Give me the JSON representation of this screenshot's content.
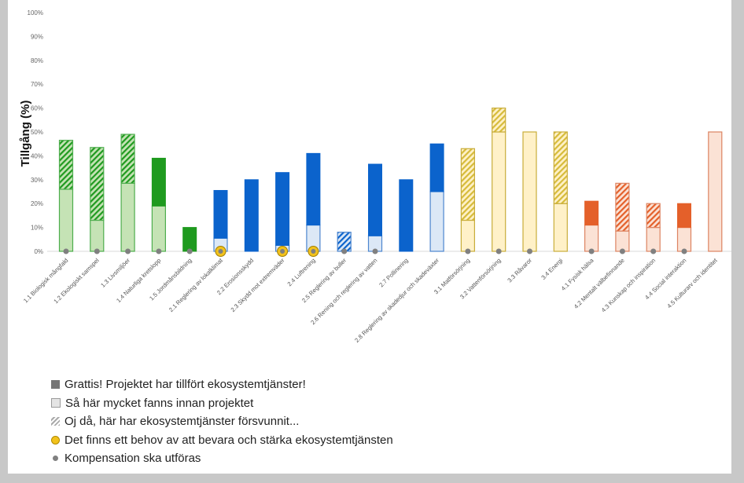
{
  "chart_data": {
    "type": "bar",
    "stacked": true,
    "ylabel": "Tillgång (%)",
    "xlabel": "",
    "ylim": [
      0,
      100
    ],
    "yticks": [
      "0%",
      "10%",
      "20%",
      "30%",
      "40%",
      "50%",
      "60%",
      "70%",
      "80%",
      "90%",
      "100%"
    ],
    "grid": false,
    "legend_position": "bottom-left",
    "categories": [
      "1.1 Biologisk mångfald",
      "1.2 Ekologiskt samspel",
      "1.3 Livsmiljöer",
      "1.4 Naturliga kretslopp",
      "1.5 Jordmånsbildning",
      "2.1 Reglering av lokalklimat",
      "2.2 Erosionsskydd",
      "2.3 Skydd mot extremväder",
      "2.4 Luftrening",
      "2.5 Reglering av buller",
      "2.6 Rening och reglering av vatten",
      "2.7 Pollinering",
      "2.8 Reglering av skadedjur och skadeväxter",
      "3.1 Matförsörjning",
      "3.2 Vattenförsörjning",
      "3.3 Råvaror",
      "3.4 Energi",
      "4.1 Fysisk hälsa",
      "4.2 Mentalt välbefinnande",
      "4.3 Kunskap och inspiration",
      "4.4 Social interaktion",
      "4.5 Kulturarv och identitet"
    ],
    "groups": [
      "1",
      "1",
      "1",
      "1",
      "1",
      "2",
      "2",
      "2",
      "2",
      "2",
      "2",
      "2",
      "2",
      "3",
      "3",
      "3",
      "3",
      "4",
      "4",
      "4",
      "4",
      "4"
    ],
    "series": [
      {
        "name": "Så här mycket fanns innan projektet",
        "values": [
          26,
          13,
          28.5,
          19,
          0,
          5.5,
          0,
          2.5,
          11,
          0,
          6.5,
          0,
          25,
          13,
          50,
          50,
          20,
          11,
          8.5,
          10,
          10,
          50
        ]
      },
      {
        "name": "Grattis! Projektet har tillfört ekosystemtjänster!",
        "values": [
          0,
          0,
          0,
          20,
          10,
          20,
          30,
          30.5,
          30,
          0,
          30,
          30,
          20,
          0,
          0,
          0,
          0,
          10,
          0,
          0,
          10,
          0
        ]
      },
      {
        "name": "Oj då, här har ekosystemtjänster försvunnit...",
        "values": [
          20.5,
          30.5,
          20.5,
          0,
          0,
          0,
          0,
          0,
          0,
          8,
          0,
          0,
          0,
          30,
          10,
          0,
          30,
          0,
          20,
          10,
          0,
          0
        ]
      }
    ],
    "markers": [
      "gray",
      "gray",
      "gray",
      "gray",
      "gray",
      "yellow",
      "none",
      "yellow",
      "yellow",
      "gray",
      "gray",
      "none",
      "none",
      "gray",
      "gray",
      "gray",
      "none",
      "gray",
      "gray",
      "gray",
      "gray",
      "none"
    ],
    "colors": {
      "1": {
        "solid": "#1f9a1f",
        "light": "#c5e3b5",
        "border": "#4eae4e"
      },
      "2": {
        "solid": "#0b63cc",
        "light": "#dce8f6",
        "border": "#4d86cf"
      },
      "3": {
        "solid": "#d6bb3a",
        "light": "#fff1c8",
        "border": "#c8ad3a"
      },
      "4": {
        "solid": "#e4602a",
        "light": "#fbe2d5",
        "border": "#dd8462"
      },
      "marker_yellow": "#f2c21c",
      "marker_gray": "#808080"
    }
  },
  "legend": [
    {
      "label": "Grattis! Projektet har tillfört ekosystemtjänster!",
      "swatch": "solid"
    },
    {
      "label": "Så här mycket fanns innan projektet",
      "swatch": "light"
    },
    {
      "label": "Oj då, här har ekosystemtjänster försvunnit...",
      "swatch": "hatch"
    },
    {
      "label": "Det finns ett behov av att bevara och stärka ekosystemtjänsten",
      "swatch": "yellow"
    },
    {
      "label": "Kompensation ska utföras",
      "swatch": "gray"
    }
  ]
}
